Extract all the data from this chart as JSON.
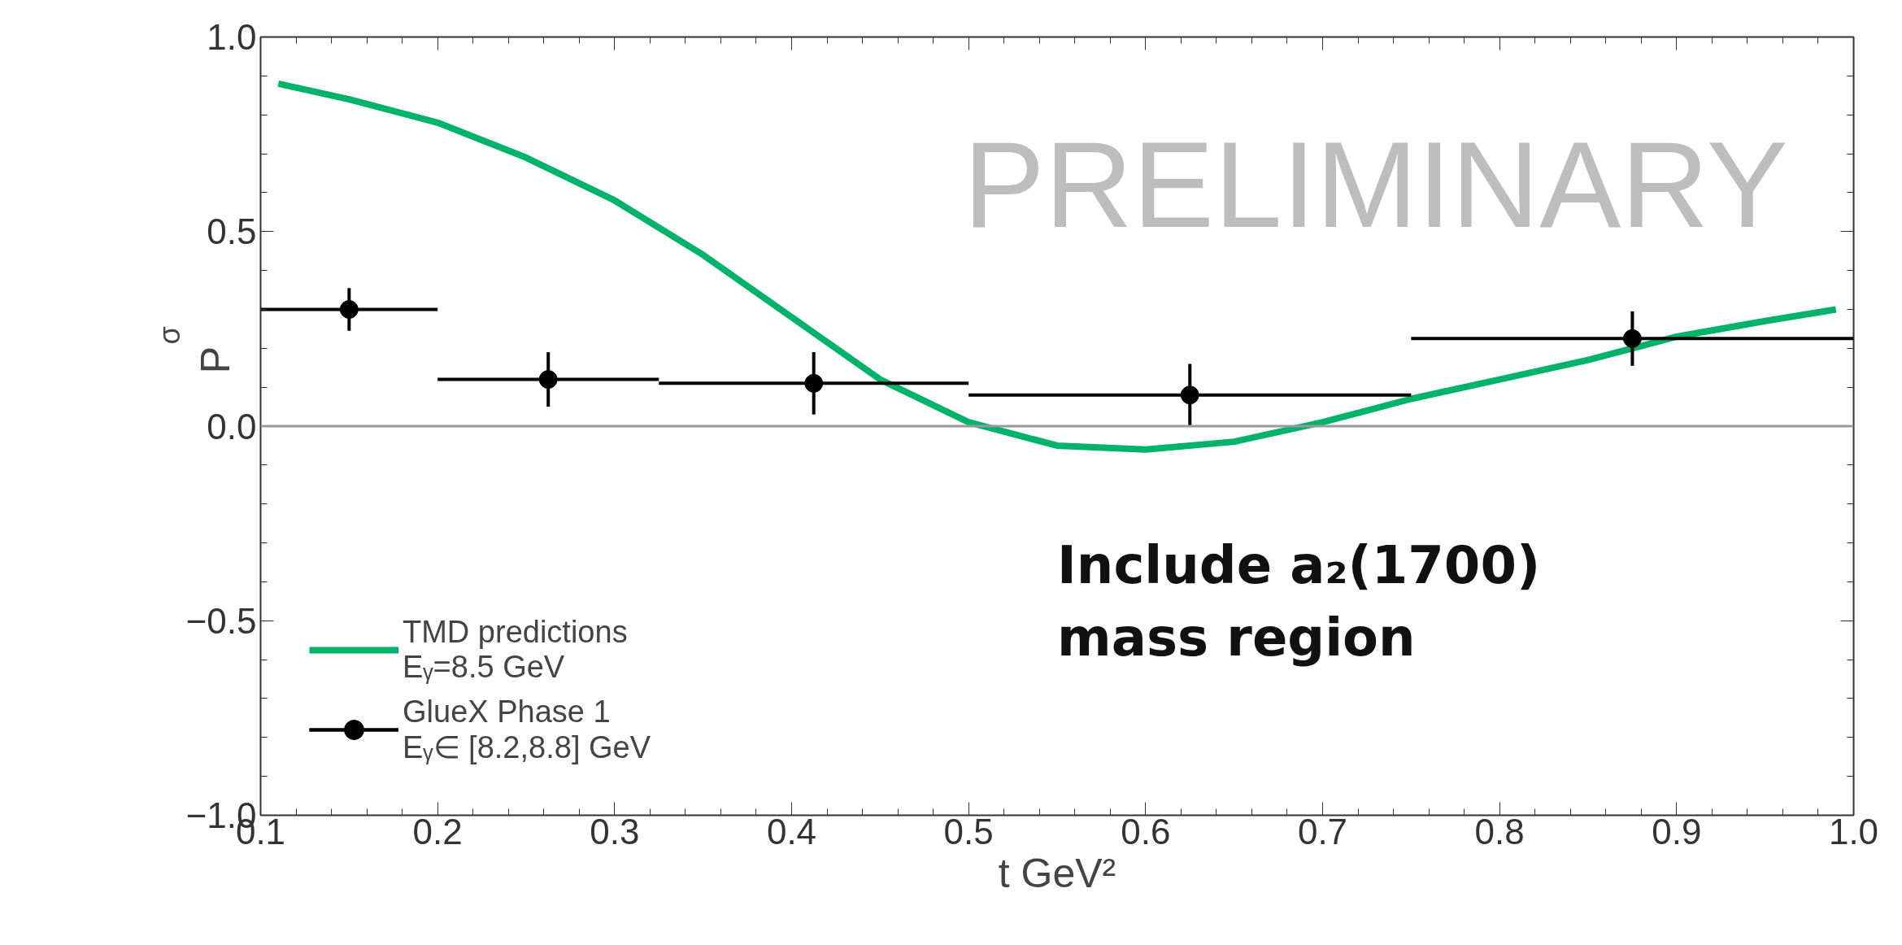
{
  "chart_data": {
    "type": "scatter",
    "xlabel": "t GeV²",
    "ylabel": "P$_{σ}$",
    "xlim": [
      0.1,
      1.0
    ],
    "ylim": [
      -1.0,
      1.0
    ],
    "xticks": [
      0.1,
      0.2,
      0.3,
      0.4,
      0.5,
      0.6,
      0.7,
      0.8,
      0.9,
      {
        "value": 1.0,
        "label": "1.0"
      }
    ],
    "yticks": [
      {
        "value": -1.0,
        "label": "−1.0"
      },
      {
        "value": -0.5,
        "label": "−0.5"
      },
      {
        "value": 0,
        "label": "0.0"
      },
      0.5,
      {
        "value": 1.0,
        "label": "1.0"
      }
    ],
    "grid": false,
    "legend": "bottom left",
    "ref_lines": [
      {
        "axis": "y",
        "value": 0,
        "color": "#999999"
      }
    ],
    "annotations": [
      "PRELIMINARY",
      "Include a₂(1700) mass region"
    ],
    "series": [
      {
        "name": "TMD predictions\nEᵧ=8.5 GeV",
        "type": "line",
        "color": "#00b36b",
        "line_style": "solid",
        "x": [
          0.11,
          0.15,
          0.2,
          0.25,
          0.3,
          0.35,
          0.4,
          0.45,
          0.5,
          0.55,
          0.6,
          0.65,
          0.7,
          0.75,
          0.8,
          0.85,
          0.9,
          0.95,
          0.99
        ],
        "values": [
          0.88,
          0.84,
          0.78,
          0.69,
          0.58,
          0.44,
          0.28,
          0.12,
          0.01,
          -0.05,
          -0.06,
          -0.04,
          0.01,
          0.07,
          0.12,
          0.17,
          0.23,
          0.27,
          0.3
        ]
      },
      {
        "name": "GlueX Phase 1\nEᵧ∈ [8.2,8.8] GeV",
        "color": "#000000",
        "marker": "circle",
        "x": [
          0.15,
          0.2625,
          0.4125,
          0.625,
          0.875
        ],
        "values": [
          0.3,
          0.12,
          0.11,
          0.08,
          0.225
        ],
        "errors": [
          0.055,
          0.07,
          0.08,
          0.08,
          0.07
        ],
        "xerrors": [
          [
            0.1,
            0.2
          ],
          [
            0.2,
            0.325
          ],
          [
            0.325,
            0.5
          ],
          [
            0.5,
            0.75
          ],
          [
            0.75,
            1.0
          ]
        ]
      }
    ]
  }
}
